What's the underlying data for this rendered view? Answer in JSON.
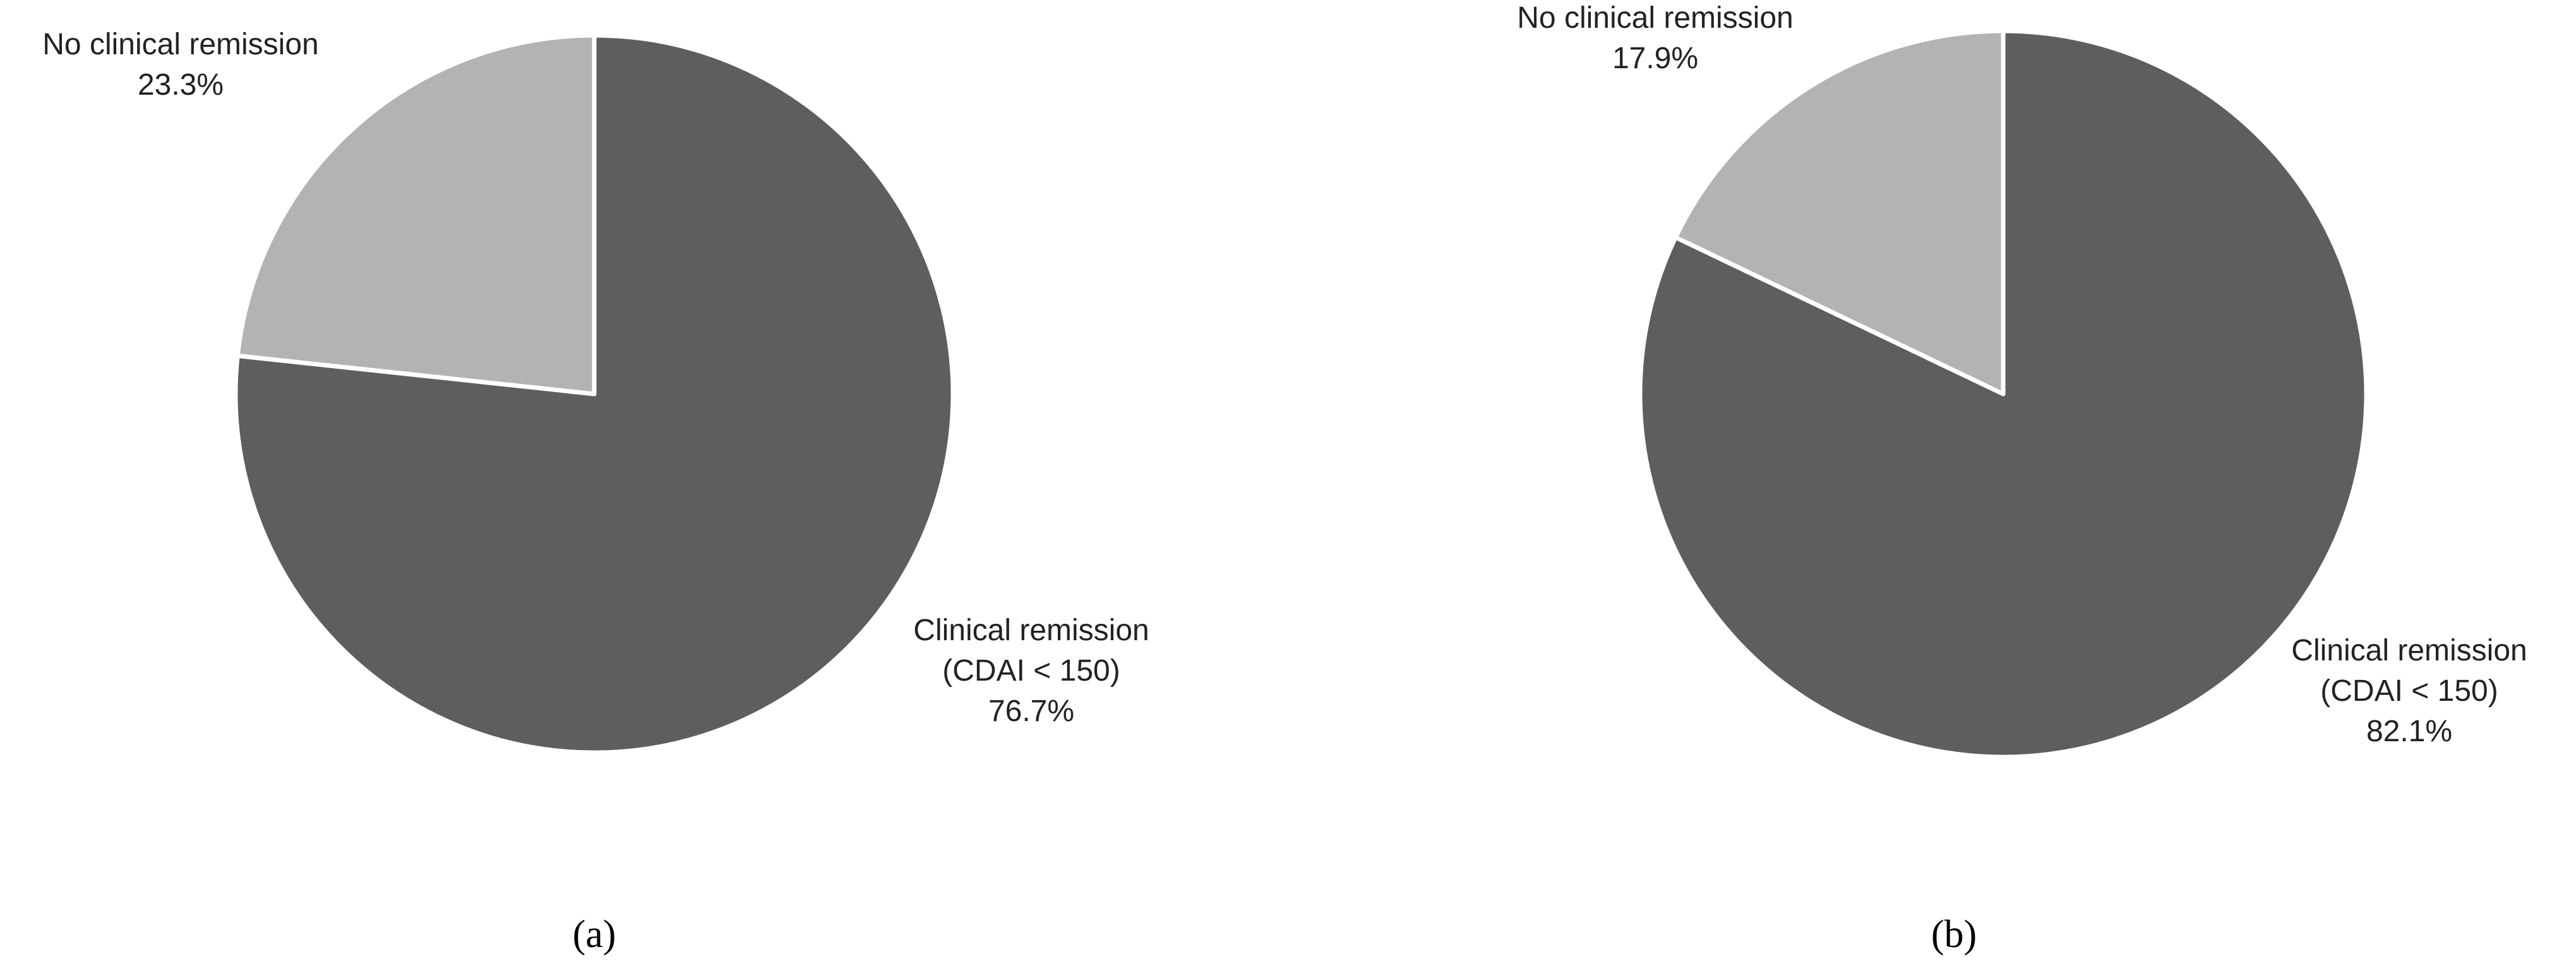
{
  "chart_data": [
    {
      "type": "pie",
      "caption": "(a)",
      "categories": [
        "Clinical remission\n(CDAI < 150)",
        "No clinical remission"
      ],
      "values": [
        76.7,
        23.3
      ],
      "value_labels": [
        "76.7%",
        "23.3%"
      ],
      "colors": [
        "#5e5e5e",
        "#b3b3b3"
      ]
    },
    {
      "type": "pie",
      "caption": "(b)",
      "categories": [
        "Clinical remission\n(CDAI < 150)",
        "No clinical remission"
      ],
      "values": [
        82.1,
        17.9
      ],
      "value_labels": [
        "82.1%",
        "17.9%"
      ],
      "colors": [
        "#5e5e5e",
        "#b3b3b3"
      ]
    }
  ]
}
